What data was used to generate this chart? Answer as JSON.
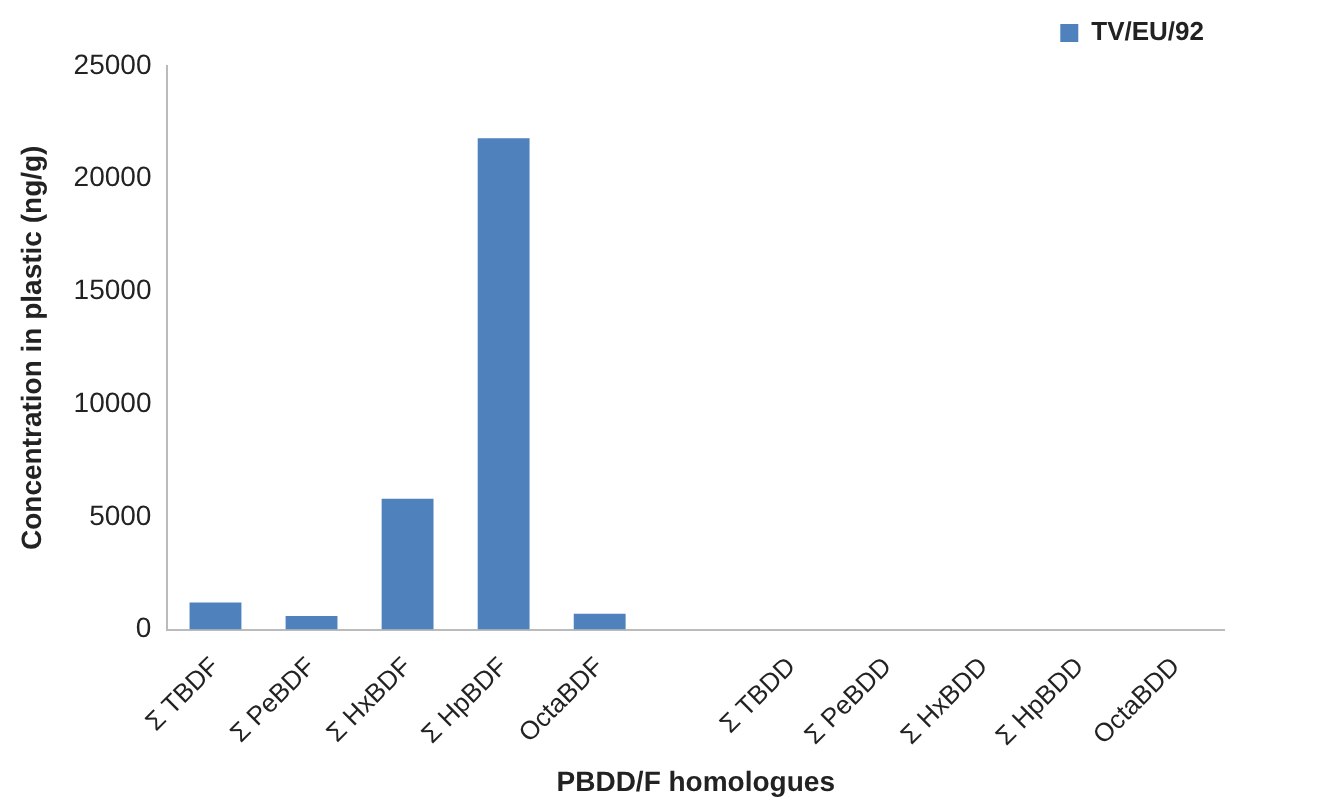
{
  "chart_data": {
    "type": "bar",
    "xlabel": "PBDD/F homologues",
    "ylabel": "Concentration in plastic (ng/g)",
    "categories": [
      "Σ TBDF",
      "Σ PeBDF",
      "Σ HxBDF",
      "Σ HpBDF",
      "OctaBDF",
      null,
      "Σ TBDD",
      "Σ PeBDD",
      "Σ HxBDD",
      "Σ HpBDD",
      "OctaBDD"
    ],
    "series": [
      {
        "name": "TV/EU/92",
        "color": "#4f81bd",
        "values": [
          1200,
          600,
          5800,
          21800,
          700,
          null,
          0,
          0,
          0,
          0,
          0
        ]
      }
    ],
    "ylim": [
      0,
      25000
    ],
    "yticks": [
      0,
      5000,
      10000,
      15000,
      20000,
      25000
    ],
    "grid": false,
    "legend": "top right"
  }
}
